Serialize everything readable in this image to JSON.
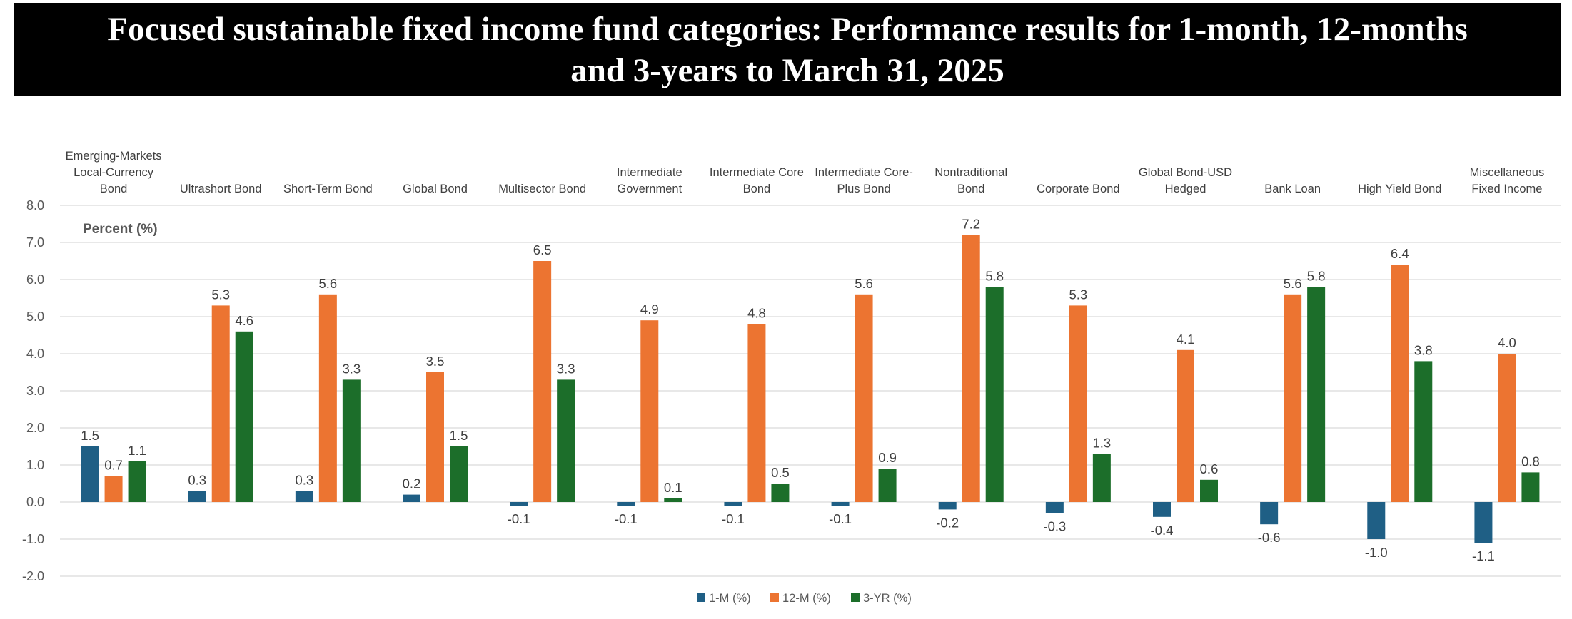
{
  "title": {
    "line1": "Focused sustainable fixed income fund categories:  Performance results for 1-month, 12-months",
    "line2": "and 3-years to March 31, 2025"
  },
  "chart_data": {
    "type": "bar",
    "ylabel": "Percent (%)",
    "ylim": [
      -2.0,
      8.0
    ],
    "yticks": [
      "8.0",
      "7.0",
      "6.0",
      "5.0",
      "4.0",
      "3.0",
      "2.0",
      "1.0",
      "0.0",
      "-1.0",
      "-2.0"
    ],
    "grid": true,
    "legend_position": "bottom",
    "categories": [
      [
        "Emerging-Markets",
        "Local-Currency",
        "Bond"
      ],
      [
        "Ultrashort Bond"
      ],
      [
        "Short-Term Bond"
      ],
      [
        "Global Bond"
      ],
      [
        "Multisector Bond"
      ],
      [
        "Intermediate",
        "Government"
      ],
      [
        "Intermediate Core",
        "Bond"
      ],
      [
        "Intermediate Core-",
        "Plus Bond"
      ],
      [
        "Nontraditional",
        "Bond"
      ],
      [
        "Corporate Bond"
      ],
      [
        "Global Bond-USD",
        "Hedged"
      ],
      [
        "Bank Loan"
      ],
      [
        "High Yield Bond"
      ],
      [
        "Miscellaneous",
        "Fixed Income"
      ]
    ],
    "series": [
      {
        "name": "1-M (%)",
        "color": "#1f5f85",
        "values": [
          1.5,
          0.3,
          0.3,
          0.2,
          -0.1,
          -0.1,
          -0.1,
          -0.1,
          -0.2,
          -0.3,
          -0.4,
          -0.6,
          -1.0,
          -1.1
        ],
        "labels": [
          "1.5",
          "0.3",
          "0.3",
          "0.2",
          "-0.1",
          "-0.1",
          "-0.1",
          "-0.1",
          "-0.2",
          "-0.3",
          "-0.4",
          "-0.6",
          "-1.0",
          "-1.1"
        ]
      },
      {
        "name": "12-M (%)",
        "color": "#ec7431",
        "values": [
          0.7,
          5.3,
          5.6,
          3.5,
          6.5,
          4.9,
          4.8,
          5.6,
          7.2,
          5.3,
          4.1,
          5.6,
          6.4,
          4.0
        ],
        "labels": [
          "0.7",
          "5.3",
          "5.6",
          "3.5",
          "6.5",
          "4.9",
          "4.8",
          "5.6",
          "7.2",
          "5.3",
          "4.1",
          "5.6",
          "6.4",
          "4.0"
        ]
      },
      {
        "name": "3-YR (%)",
        "color": "#1c6e2a",
        "values": [
          1.1,
          4.6,
          3.3,
          1.5,
          3.3,
          0.1,
          0.5,
          0.9,
          5.8,
          1.3,
          0.6,
          5.8,
          3.8,
          0.8
        ],
        "labels": [
          "1.1",
          "4.6",
          "3.3",
          "1.5",
          "3.3",
          "0.1",
          "0.5",
          "0.9",
          "5.8",
          "1.3",
          "0.6",
          "5.8",
          "3.8",
          "0.8"
        ]
      }
    ]
  }
}
